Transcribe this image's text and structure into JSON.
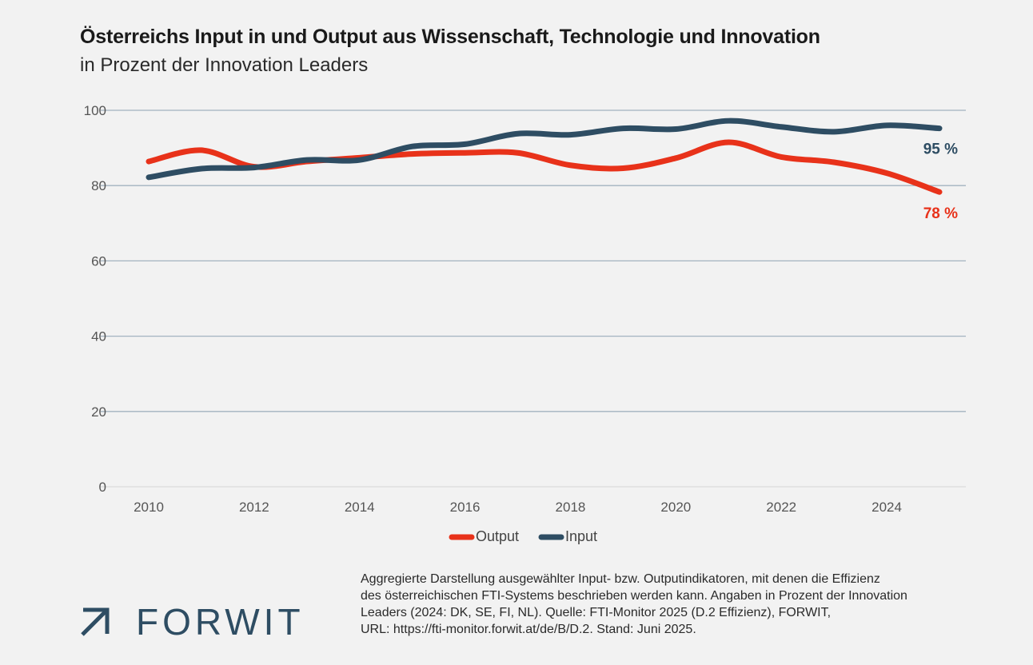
{
  "header": {
    "title": "Österreichs Input in und Output aus Wissenschaft, Technologie und Innovation",
    "subtitle": "in Prozent der Innovation Leaders"
  },
  "chart_data": {
    "type": "line",
    "title": "Österreichs Input in und Output aus Wissenschaft, Technologie und Innovation",
    "subtitle": "in Prozent der Innovation Leaders",
    "xlabel": "",
    "ylabel": "",
    "x": [
      2010,
      2011,
      2012,
      2013,
      2014,
      2015,
      2016,
      2017,
      2018,
      2019,
      2020,
      2021,
      2022,
      2023,
      2024,
      2025
    ],
    "xticks": [
      "2010",
      "2012",
      "2014",
      "2016",
      "2018",
      "2020",
      "2022",
      "2024"
    ],
    "xtick_values": [
      2010,
      2012,
      2014,
      2016,
      2018,
      2020,
      2022,
      2024
    ],
    "yticks": [
      "0",
      "20",
      "40",
      "60",
      "80",
      "100"
    ],
    "ytick_values": [
      0,
      20,
      40,
      60,
      80,
      100
    ],
    "ylim": [
      0,
      100
    ],
    "xlim": [
      2010,
      2025
    ],
    "grid": true,
    "series": [
      {
        "name": "Output",
        "color": "#e8321a",
        "values": [
          86.4,
          89.4,
          85.0,
          86.4,
          87.4,
          88.4,
          88.7,
          88.7,
          85.4,
          84.6,
          87.3,
          91.5,
          87.6,
          86.2,
          83.3,
          78.3
        ],
        "end_label": "78 %"
      },
      {
        "name": "Input",
        "color": "#2e4d63",
        "values": [
          82.2,
          84.5,
          84.8,
          86.8,
          86.8,
          90.4,
          91.0,
          93.8,
          93.5,
          95.2,
          95.0,
          97.2,
          95.6,
          94.3,
          96.0,
          95.2
        ],
        "end_label": "95 %"
      }
    ],
    "legend": [
      "Output",
      "Input"
    ],
    "legend_position": "bottom-center"
  },
  "footer": {
    "note_lines": [
      "Aggregierte Darstellung ausgewählter Input- bzw. Outputindikatoren, mit denen die Effizienz",
      "des österreichischen FTI-Systems beschrieben werden kann. Angaben in Prozent der Innovation",
      "Leaders (2024: DK, SE, FI, NL). Quelle: FTI-Monitor 2025 (D.2 Effizienz), FORWIT,",
      "URL: https://fti-monitor.forwit.at/de/B/D.2. Stand: Juni 2025."
    ],
    "logo_text": "FORWIT",
    "logo_icon": "arrow-up-right-icon"
  }
}
